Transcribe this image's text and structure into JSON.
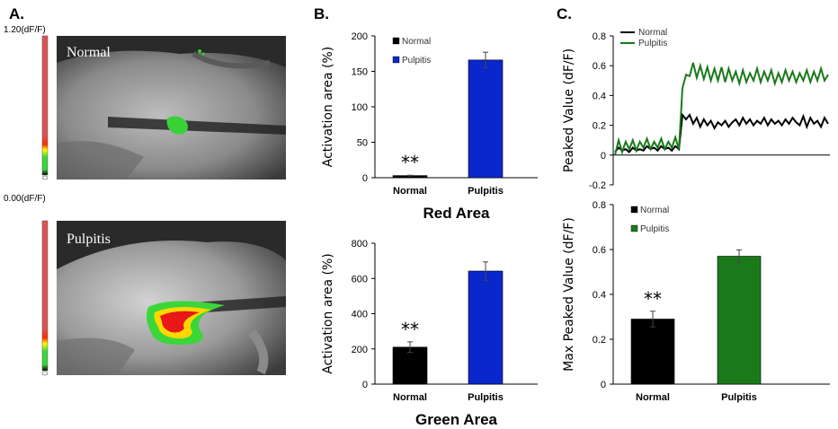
{
  "panels": {
    "a": {
      "letter": "A.",
      "scale": {
        "max_label": "1.20(dF/F)",
        "min_label": "0.00(dF/F)"
      },
      "images": [
        {
          "label": "Normal",
          "description": "grayscale specimen with small green activation spot"
        },
        {
          "label": "Pulpitis",
          "description": "grayscale specimen with red/yellow/green activation region"
        }
      ]
    },
    "b": {
      "letter": "B."
    },
    "c": {
      "letter": "C."
    }
  },
  "colors": {
    "black_series": "#000000",
    "blue_series": "#0a27cc",
    "green_series": "#1a7a1a",
    "scale_red": "#d9534f"
  },
  "chart_data": [
    {
      "id": "b-top",
      "type": "bar",
      "title": "Red Area",
      "ylabel": "Activation area  (%)",
      "xlabel": "",
      "categories": [
        "Normal",
        "Pulpitis"
      ],
      "values": [
        3,
        166
      ],
      "errors": [
        0.5,
        11
      ],
      "ylim": [
        0,
        200
      ],
      "yticks": [
        0,
        50,
        100,
        150,
        200
      ],
      "legend": [
        "Normal",
        "Pulpitis"
      ],
      "legend_position": "top-left",
      "bar_colors": [
        "#000000",
        "#0a27cc"
      ],
      "significance": {
        "category": "Normal",
        "label": "**"
      }
    },
    {
      "id": "b-bottom",
      "type": "bar",
      "title": "Green Area",
      "ylabel": "Activation area  (%)",
      "xlabel": "",
      "categories": [
        "Normal",
        "Pulpitis"
      ],
      "values": [
        210,
        642
      ],
      "errors": [
        30,
        52
      ],
      "ylim": [
        0,
        800
      ],
      "yticks": [
        0,
        200,
        400,
        600,
        800
      ],
      "bar_colors": [
        "#000000",
        "#0a27cc"
      ],
      "significance": {
        "category": "Normal",
        "label": "**"
      }
    },
    {
      "id": "c-top",
      "type": "line",
      "ylabel": "Peaked Value (dF/F)",
      "xlabel": "",
      "ylim": [
        -0.2,
        0.8
      ],
      "yticks": [
        -0.2,
        0,
        0.2,
        0.4,
        0.6,
        0.8
      ],
      "legend_position": "top-left",
      "series": [
        {
          "name": "Normal",
          "color": "#000000",
          "values": [
            0.02,
            0.05,
            0.03,
            0.04,
            0.02,
            0.05,
            0.03,
            0.04,
            0.03,
            0.06,
            0.04,
            0.05,
            0.03,
            0.06,
            0.04,
            0.05,
            0.03,
            0.06,
            0.04,
            0.27,
            0.24,
            0.27,
            0.21,
            0.25,
            0.19,
            0.24,
            0.2,
            0.23,
            0.18,
            0.22,
            0.2,
            0.23,
            0.19,
            0.22,
            0.24,
            0.2,
            0.25,
            0.21,
            0.24,
            0.2,
            0.23,
            0.21,
            0.25,
            0.2,
            0.24,
            0.21,
            0.23,
            0.2,
            0.24,
            0.21,
            0.25,
            0.22,
            0.2,
            0.26,
            0.19,
            0.25,
            0.21,
            0.23,
            0.19,
            0.25,
            0.21
          ]
        },
        {
          "name": "Pulpitis",
          "color": "#1a7a1a",
          "values": [
            0.0,
            0.1,
            0.02,
            0.09,
            0.04,
            0.1,
            0.03,
            0.09,
            0.05,
            0.11,
            0.04,
            0.09,
            0.05,
            0.11,
            0.04,
            0.09,
            0.05,
            0.12,
            0.04,
            0.45,
            0.54,
            0.53,
            0.62,
            0.52,
            0.6,
            0.51,
            0.59,
            0.5,
            0.58,
            0.5,
            0.59,
            0.49,
            0.58,
            0.5,
            0.56,
            0.48,
            0.57,
            0.49,
            0.55,
            0.5,
            0.58,
            0.49,
            0.56,
            0.5,
            0.57,
            0.48,
            0.55,
            0.49,
            0.57,
            0.5,
            0.56,
            0.49,
            0.55,
            0.5,
            0.57,
            0.49,
            0.56,
            0.5,
            0.58,
            0.5,
            0.54
          ]
        }
      ]
    },
    {
      "id": "c-bottom",
      "type": "bar",
      "ylabel": "Max Peaked Value (dF/F)",
      "xlabel": "",
      "categories": [
        "Normal",
        "Pulpitis"
      ],
      "values": [
        0.29,
        0.57
      ],
      "errors": [
        0.035,
        0.028
      ],
      "ylim": [
        0,
        0.8
      ],
      "yticks": [
        0,
        0.2,
        0.4,
        0.6,
        0.8
      ],
      "legend": [
        "Normal",
        "Pulpitis"
      ],
      "legend_position": "top-left",
      "bar_colors": [
        "#000000",
        "#1a7a1a"
      ],
      "significance": {
        "category": "Normal",
        "label": "**"
      }
    }
  ]
}
